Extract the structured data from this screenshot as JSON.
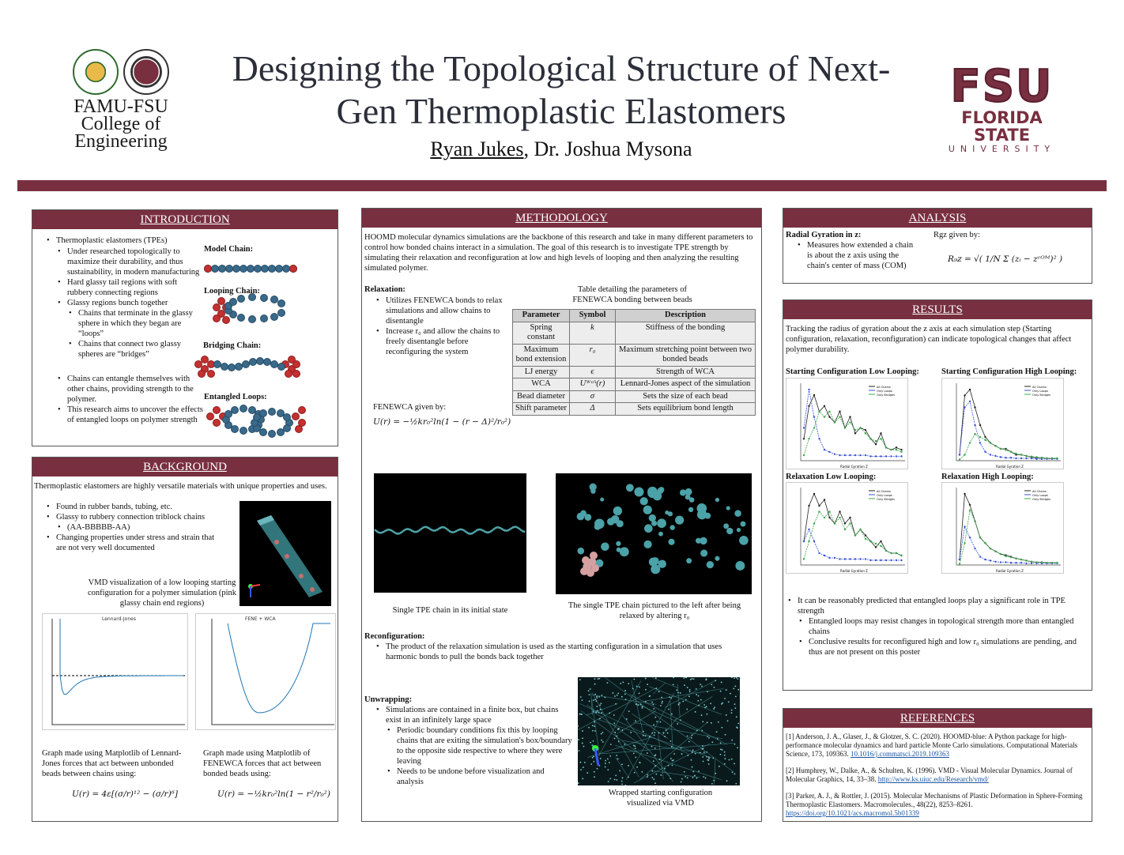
{
  "header": {
    "college_lines": [
      "FAMU-FSU",
      "College of",
      "Engineering"
    ],
    "title": "Designing the Topological Structure of Next-Gen Thermoplastic Elastomers",
    "author_primary": "Ryan Jukes",
    "author_rest": ", Dr. Joshua Mysona",
    "fsu_big": "FSU",
    "fsu_mid": "FLORIDA STATE",
    "fsu_small": "UNIVERSITY"
  },
  "introduction": {
    "heading": "INTRODUCTION",
    "b1": "Thermoplastic elastomers (TPEs)",
    "b1a": "Under researched topologically to maximize their durability, and thus sustainability, in modern manufacturing",
    "b1b": "Hard glassy tail regions with soft rubbery connecting regions",
    "b1c": "Glassy regions bunch together",
    "b1c1": "Chains that terminate in the glassy  sphere in which they began are “loops”",
    "b1c2": "Chains that connect two glassy spheres are “bridges”",
    "b1d": "Chains can entangle themselves with other chains, providing strength to the polymer.",
    "b1e": "This research aims to uncover the effects of entangled loops on polymer strength",
    "label_model": "Model Chain:",
    "label_looping": "Looping Chain:",
    "label_bridging": "Bridging Chain:",
    "label_entangled": "Entangled Loops:"
  },
  "background": {
    "heading": "BACKGROUND",
    "intro": "Thermoplastic elastomers are highly versatile materials with unique properties and uses.",
    "b1": "Found in rubber bands, tubing, etc.",
    "b2": "Glassy to rubbery connection triblock chains",
    "b2a": "(AA-BBBBB-AA)",
    "b3": "Changing properties under stress and strain that are not very well documented",
    "vmd_caption": "VMD visualization of a low looping starting configuration for a polymer simulation (pink glassy chain end regions)",
    "graph1_title": "Lennard-Jones",
    "graph2_title": "FENE + WCA",
    "cap1": "Graph made using Matplotlib of Lennard-Jones forces that act between unbonded beads between chains using:",
    "cap2": "Graph made using Matplotlib of FENEWCA forces that act between bonded beads using:",
    "eq1": "U(r) = 4ε[(σ/r)¹² − (σ/r)⁶]",
    "eq2": "U(r) = −½kr₀²ln(1 − r²/r₀²)"
  },
  "methodology": {
    "heading": "METHODOLOGY",
    "intro": "HOOMD molecular dynamics simulations are the backbone of this research and take in many different parameters to control how bonded chains interact in a simulation. The goal of this research is to investigate TPE strength by simulating their relaxation and reconfiguration at low and high levels of looping and then analyzing the resulting simulated polymer.",
    "relax_head": "Relaxation:",
    "relax_b1": "Utilizes FENEWCA bonds to relax simulations and allow chains to disentangle",
    "relax_b2": "Increase r₀ and allow the chains to freely disentangle before reconfiguring the system",
    "fene_label": "FENEWCA given by:",
    "fene_eq": "U(r) = −½kr₀²ln(1 − (r − Δ)²/r₀²)",
    "table_caption": "Table detailing the parameters of FENEWCA bonding between beads",
    "table_headers": [
      "Parameter",
      "Symbol",
      "Description"
    ],
    "table_rows": [
      [
        "Spring constant",
        "k",
        "Stiffness of the bonding"
      ],
      [
        "Maximum bond extension",
        "r₀",
        "Maximum stretching point between two bonded beads"
      ],
      [
        "LJ energy",
        "ϵ",
        "Strength of WCA"
      ],
      [
        "WCA",
        "Uᵂᶜᴬ(r)",
        "Lennard-Jones aspect of the simulation"
      ],
      [
        "Bead diameter",
        "σ",
        "Sets the size of each bead"
      ],
      [
        "Shift parameter",
        "Δ",
        "Sets equilibrium bond length"
      ]
    ],
    "img1_caption": "Single TPE chain in its initial state",
    "img2_caption": "The single TPE chain pictured to the left after being relaxed by altering r₀",
    "reconfig_head": "Reconfiguration:",
    "reconfig_b1": "The product of the relaxation simulation is used as the starting configuration in a simulation that uses harmonic bonds to pull the bonds back together",
    "unwrap_head": "Unwrapping:",
    "unwrap_b1": "Simulations are contained in a finite box, but chains exist in an infinitely large space",
    "unwrap_b1a": "Periodic boundary conditions fix this by looping chains that are exiting the simulation's box/boundary to the opposite side respective to where they were leaving",
    "unwrap_b1b": "Needs to be undone before visualization and analysis",
    "img3_caption": "Wrapped starting configuration visualized via VMD"
  },
  "analysis": {
    "heading": "ANALYSIS",
    "sub": "Radial Gyration in z:",
    "b1": "Measures how extended a chain is about the z axis using the chain's center of mass (COM)",
    "rgz_label": "Rgz given by:",
    "rgz_eq": "R₉ᴢ = √( 1/N Σ (zᵢ − zᶜᴼᴹ)² )"
  },
  "results": {
    "heading": "RESULTS",
    "intro": "Tracking the radius of gyration about the z axis at each simulation step (Starting configuration, relaxation, reconfiguration) can indicate topological changes that affect polymer durability.",
    "g1": "Starting Configuration Low Looping:",
    "g2": "Starting Configuration High Looping:",
    "g3": "Relaxation Low Looping:",
    "g4": "Relaxation High Looping:",
    "legend": [
      "All Chains",
      "Only Loops",
      "Only Bridges"
    ],
    "xlabel": "Radial Gyration Z",
    "ylabel": "Normalized Count",
    "b1": "It can be reasonably predicted that entangled loops play a significant role in TPE strength",
    "b1a": "Entangled loops may resist changes in topological strength more than entangled chains",
    "b1b": "Conclusive results for reconfigured high and low r₀ simulations are pending, and thus are not present on this poster"
  },
  "references": {
    "heading": "REFERENCES",
    "r1": "[1] Anderson, J. A., Glaser, J., & Glotzer, S. C. (2020). HOOMD-blue: A Python package for  high-performance molecular dynamics and hard particle Monte Carlo simulations. Computational Materials Science, 173, 109363.",
    "r1_link": "10.1016/j.commatsci.2019.109363",
    "r2": "[2] Humphrey, W., Dalke, A., & Schulten, K. (1996). VMD - Visual Molecular Dynamics. Journal of Molecular Graphics, 14, 33–38.",
    "r2_link": "http://www.ks.uiuc.edu/Research/vmd/",
    "r3": "[3] Parker, A. J., & Rottler, J. (2015). Molecular Mechanisms of Plastic Deformation in Sphere-Forming Thermoplastic Elastomers. Macromolecules., 48(22), 8253–8261.",
    "r3_link": "https://doi.org/10.1021/acs.macromol.5b01339"
  },
  "colors": {
    "maroon": "#782f40",
    "chain_blue": "#3a6a8a",
    "glassy_red": "#c53030"
  }
}
